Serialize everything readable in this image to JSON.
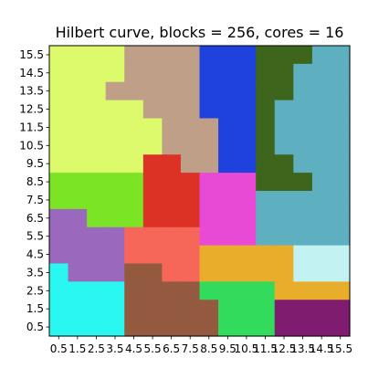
{
  "chart_data": {
    "type": "heatmap",
    "title": "Hilbert curve, blocks = 256, cores = 16",
    "xlabel": "",
    "ylabel": "",
    "xlim": [
      0,
      16
    ],
    "ylim": [
      0,
      16
    ],
    "grid": false,
    "x_ticks": [
      0.5,
      1.5,
      2.5,
      3.5,
      4.5,
      5.5,
      6.5,
      7.5,
      8.5,
      9.5,
      10.5,
      11.5,
      12.5,
      13.5,
      14.5,
      15.5
    ],
    "x_tick_labels": [
      "0.5",
      "1.5",
      "2.5",
      "3.5",
      "4.5",
      "5.5",
      "6.5",
      "7.5",
      "8.5",
      "9.5",
      "10.5",
      "11.5",
      "12.5",
      "13.5",
      "14.5",
      "15.5"
    ],
    "y_ticks": [
      0.5,
      1.5,
      2.5,
      3.5,
      4.5,
      5.5,
      6.5,
      7.5,
      8.5,
      9.5,
      10.5,
      11.5,
      12.5,
      13.5,
      14.5,
      15.5
    ],
    "y_tick_labels": [
      "0.5",
      "1.5",
      "2.5",
      "3.5",
      "4.5",
      "5.5",
      "6.5",
      "7.5",
      "8.5",
      "9.5",
      "10.5",
      "11.5",
      "12.5",
      "13.5",
      "14.5",
      "15.5"
    ],
    "core_colors": [
      "#2af7ef",
      "#935a40",
      "#32db5c",
      "#7f1c70",
      "#c2f2f2",
      "#e8ad2b",
      "#e84ad6",
      "#f66659",
      "#9a68bd",
      "#7be424",
      "#dc3226",
      "#c09f88",
      "#ddf96c",
      "#1f42de",
      "#3e651c",
      "#5eafc0"
    ],
    "rows_top_to_bottom": [
      [
        12,
        12,
        12,
        12,
        11,
        11,
        11,
        11,
        13,
        13,
        13,
        14,
        14,
        14,
        15,
        15
      ],
      [
        12,
        12,
        12,
        12,
        11,
        11,
        11,
        11,
        13,
        13,
        13,
        14,
        14,
        15,
        15,
        15
      ],
      [
        12,
        12,
        12,
        11,
        11,
        11,
        11,
        11,
        13,
        13,
        13,
        14,
        14,
        15,
        15,
        15
      ],
      [
        12,
        12,
        12,
        12,
        12,
        11,
        11,
        11,
        13,
        13,
        13,
        14,
        15,
        15,
        15,
        15
      ],
      [
        12,
        12,
        12,
        12,
        12,
        12,
        11,
        11,
        11,
        13,
        13,
        14,
        15,
        15,
        15,
        15
      ],
      [
        12,
        12,
        12,
        12,
        12,
        12,
        11,
        11,
        11,
        13,
        13,
        14,
        15,
        15,
        15,
        15
      ],
      [
        12,
        12,
        12,
        12,
        12,
        10,
        10,
        11,
        11,
        13,
        13,
        14,
        14,
        15,
        15,
        15
      ],
      [
        9,
        9,
        9,
        9,
        9,
        10,
        10,
        10,
        6,
        6,
        6,
        14,
        14,
        14,
        15,
        15
      ],
      [
        9,
        9,
        9,
        9,
        9,
        10,
        10,
        10,
        6,
        6,
        6,
        15,
        15,
        15,
        15,
        15
      ],
      [
        8,
        8,
        9,
        9,
        9,
        10,
        10,
        10,
        6,
        6,
        6,
        15,
        15,
        15,
        15,
        15
      ],
      [
        8,
        8,
        8,
        8,
        7,
        7,
        7,
        7,
        6,
        6,
        6,
        15,
        15,
        15,
        15,
        15
      ],
      [
        8,
        8,
        8,
        8,
        7,
        7,
        7,
        7,
        5,
        5,
        5,
        5,
        5,
        4,
        4,
        4
      ],
      [
        0,
        8,
        8,
        8,
        1,
        1,
        7,
        7,
        5,
        5,
        5,
        5,
        5,
        4,
        4,
        4
      ],
      [
        0,
        0,
        0,
        0,
        1,
        1,
        1,
        1,
        2,
        2,
        2,
        2,
        5,
        5,
        5,
        5
      ],
      [
        0,
        0,
        0,
        0,
        1,
        1,
        1,
        1,
        1,
        2,
        2,
        2,
        3,
        3,
        3,
        3
      ],
      [
        0,
        0,
        0,
        0,
        1,
        1,
        1,
        1,
        1,
        2,
        2,
        2,
        3,
        3,
        3,
        3
      ]
    ]
  }
}
